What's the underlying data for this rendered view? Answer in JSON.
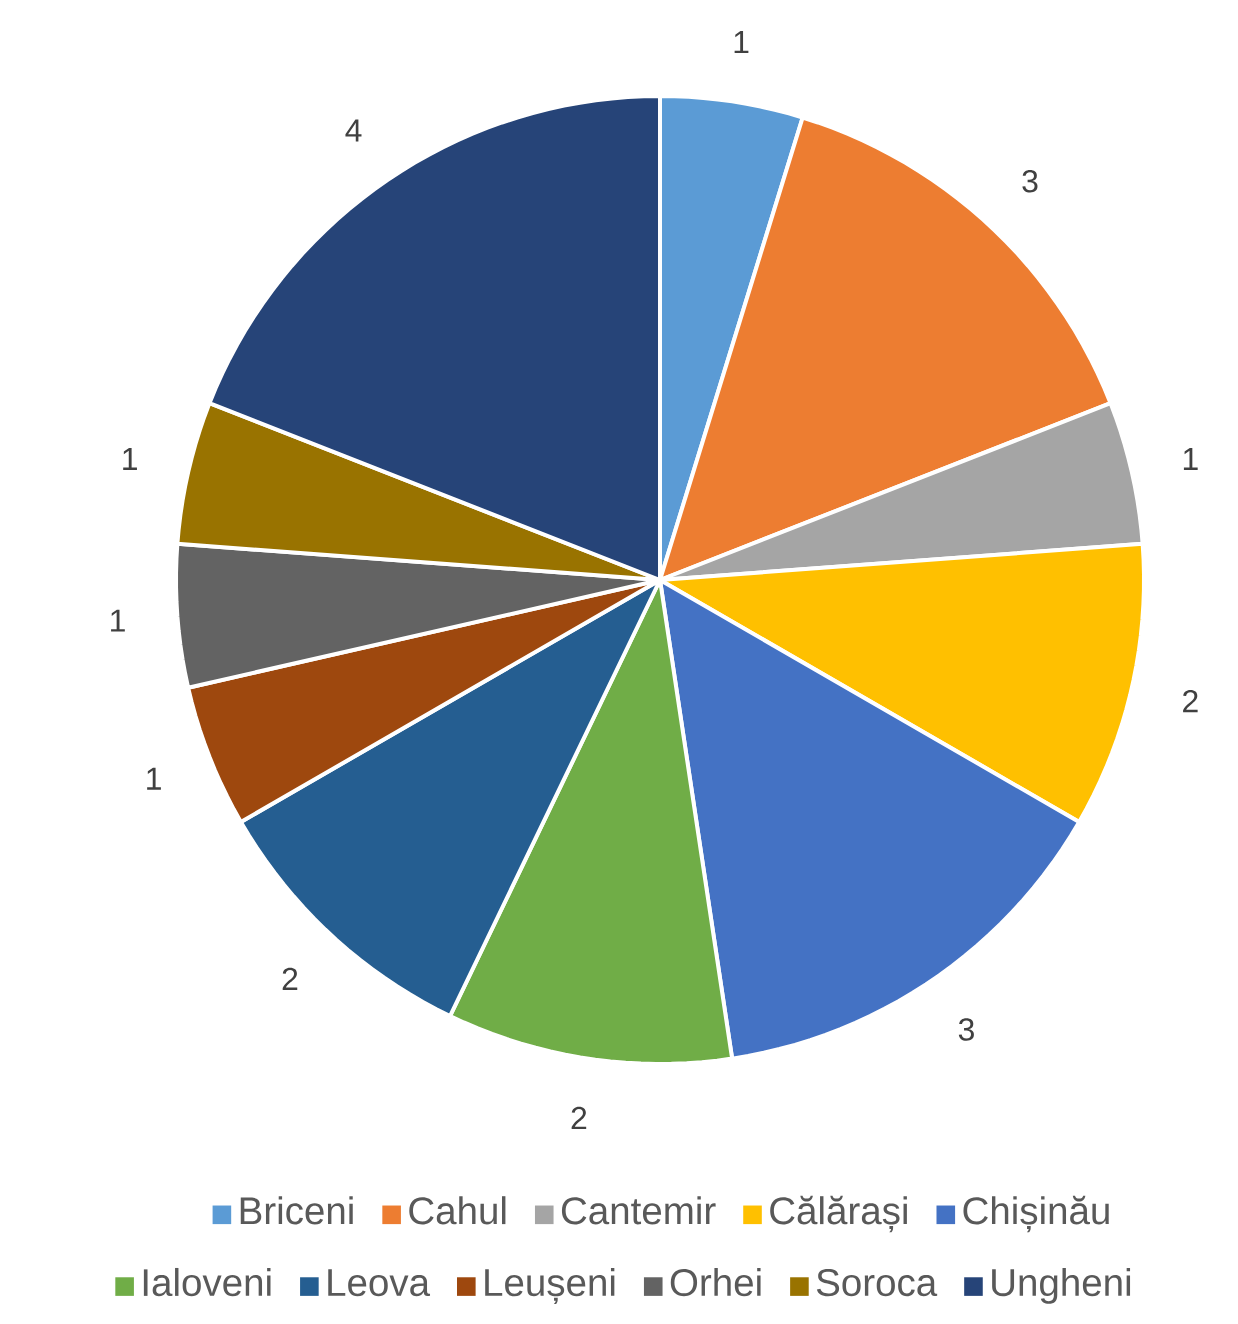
{
  "chart_data": {
    "type": "pie",
    "categories": [
      "Briceni",
      "Cahul",
      "Cantemir",
      "Călărași",
      "Chișinău",
      "Ialoveni",
      "Leova",
      "Leușeni",
      "Orhei",
      "Soroca",
      "Ungheni"
    ],
    "values": [
      1,
      3,
      1,
      2,
      3,
      2,
      2,
      1,
      1,
      1,
      4
    ],
    "colors": [
      "#5b9bd5",
      "#ed7d31",
      "#a5a5a5",
      "#ffc000",
      "#4472c4",
      "#70ad47",
      "#255e91",
      "#9e480e",
      "#636363",
      "#997300",
      "#264478"
    ],
    "data_labels": true,
    "legend": "bottom"
  }
}
